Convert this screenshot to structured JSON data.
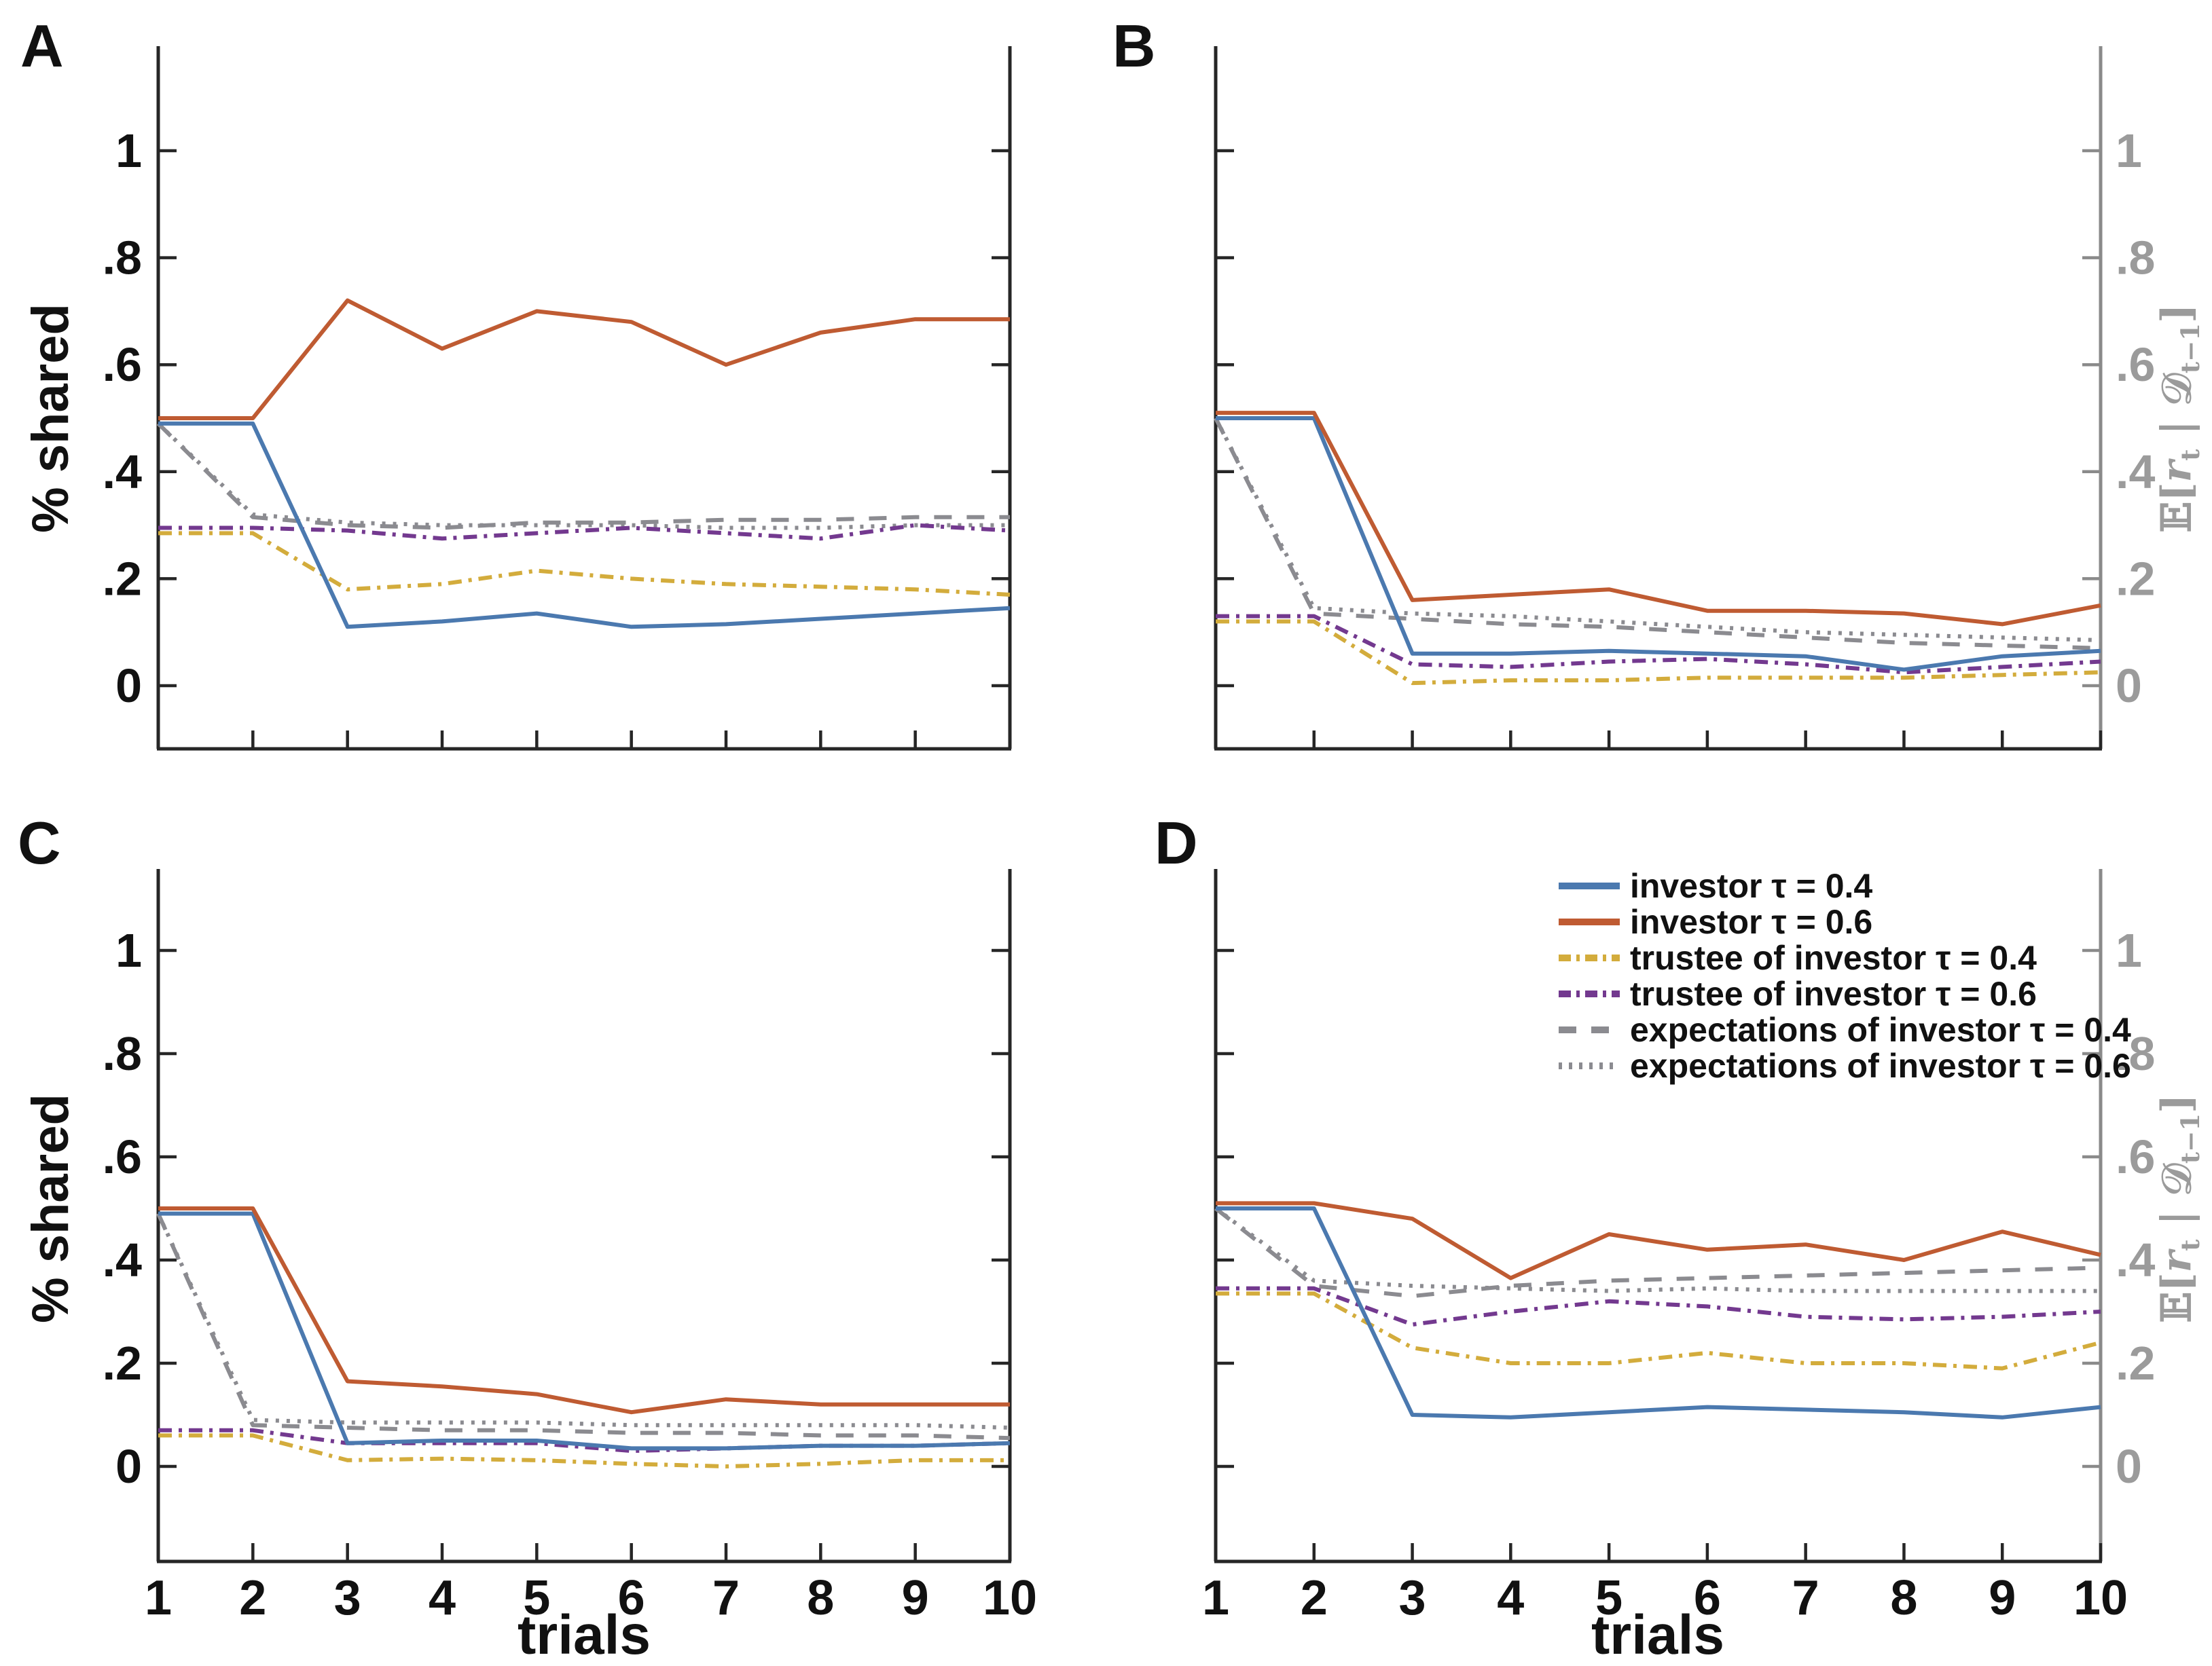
{
  "figure": {
    "panels": [
      {
        "id": "A",
        "letter": "A",
        "chart_index": 0,
        "row": 0,
        "col": 0,
        "left_tick_labels": true,
        "right_tick_labels": false,
        "x_tick_labels": false,
        "show_legend": false
      },
      {
        "id": "B",
        "letter": "B",
        "chart_index": 1,
        "row": 0,
        "col": 1,
        "left_tick_labels": false,
        "right_tick_labels": true,
        "x_tick_labels": false,
        "show_legend": false
      },
      {
        "id": "C",
        "letter": "C",
        "chart_index": 2,
        "row": 1,
        "col": 0,
        "left_tick_labels": true,
        "right_tick_labels": false,
        "x_tick_labels": true,
        "show_legend": false
      },
      {
        "id": "D",
        "letter": "D",
        "chart_index": 3,
        "row": 1,
        "col": 1,
        "left_tick_labels": false,
        "right_tick_labels": true,
        "x_tick_labels": true,
        "show_legend": true
      }
    ],
    "left_axis_label": "% shared",
    "x_axis_label": "trials",
    "right_axis_label_plain": "𝔼[rt | 𝒟t−1]",
    "right_axis_label_parts": {
      "p1": "𝔼[",
      "p2": "r",
      "s1": "t",
      "p3": " | ",
      "p4": "𝒟",
      "s2": "t−1",
      "p5": "]"
    }
  },
  "colors": {
    "investor_tau04": "#4B79AF",
    "investor_tau06": "#BF5B32",
    "trustee_tau04": "#D3AC3C",
    "trustee_tau06": "#73398F",
    "expectations_gray": "#8B8B90",
    "axis": "#262626",
    "right_spine": "#8A8A8A",
    "right_axis_text": "#9B9B9B"
  },
  "legend": {
    "position": "top of panel D",
    "items": [
      {
        "key": "investor_tau04",
        "label": "investor τ = 0.4",
        "color": "#4B79AF",
        "style": "solid"
      },
      {
        "key": "investor_tau06",
        "label": "investor τ = 0.6",
        "color": "#BF5B32",
        "style": "solid"
      },
      {
        "key": "trustee_tau04",
        "label": "trustee of investor τ = 0.4",
        "color": "#D3AC3C",
        "style": "dashdot"
      },
      {
        "key": "trustee_tau06",
        "label": "trustee of investor τ = 0.6",
        "color": "#73398F",
        "style": "dashdot"
      },
      {
        "key": "expectations_tau04",
        "label": "expectations of investor τ = 0.4",
        "color": "#8B8B90",
        "style": "dash"
      },
      {
        "key": "expectations_tau06",
        "label": "expectations of investor τ = 0.6",
        "color": "#8B8B90",
        "style": "dot"
      }
    ]
  },
  "chart_data": [
    {
      "panel": "A",
      "type": "line",
      "title": "",
      "xlabel": "",
      "ylabel_left": "% shared",
      "ylabel_right": "",
      "xlim": [
        1,
        10
      ],
      "ylim": [
        -0.12,
        1.2
      ],
      "grid": false,
      "legend_position": "none",
      "x_ticks": {
        "values": [
          1,
          2,
          3,
          4,
          5,
          6,
          7,
          8,
          9,
          10
        ],
        "labels": null
      },
      "y_ticks": {
        "values": [
          0,
          0.2,
          0.4,
          0.6,
          0.8,
          1
        ],
        "labels": [
          "0",
          ".2",
          ".4",
          ".6",
          ".8",
          "1"
        ]
      },
      "x": [
        1,
        2,
        3,
        4,
        5,
        6,
        7,
        8,
        9,
        10
      ],
      "series": [
        {
          "key": "expectations_tau04",
          "label": "expectations of investor τ = 0.4",
          "color": "#8B8B90",
          "style": "dash",
          "values": [
            0.49,
            0.315,
            0.3,
            0.295,
            0.305,
            0.305,
            0.31,
            0.31,
            0.315,
            0.315
          ]
        },
        {
          "key": "expectations_tau06",
          "label": "expectations of investor τ = 0.6",
          "color": "#8B8B90",
          "style": "dot",
          "values": [
            0.49,
            0.32,
            0.305,
            0.3,
            0.3,
            0.3,
            0.295,
            0.295,
            0.3,
            0.3
          ]
        },
        {
          "key": "trustee_tau04",
          "label": "trustee of investor τ = 0.4",
          "color": "#D3AC3C",
          "style": "dashdot",
          "values": [
            0.285,
            0.285,
            0.18,
            0.19,
            0.215,
            0.2,
            0.19,
            0.185,
            0.18,
            0.17
          ]
        },
        {
          "key": "trustee_tau06",
          "label": "trustee of investor τ = 0.6",
          "color": "#73398F",
          "style": "dashdot",
          "values": [
            0.295,
            0.295,
            0.29,
            0.275,
            0.285,
            0.295,
            0.285,
            0.275,
            0.3,
            0.29
          ]
        },
        {
          "key": "investor_tau04",
          "label": "investor τ = 0.4",
          "color": "#4B79AF",
          "style": "solid",
          "values": [
            0.49,
            0.49,
            0.11,
            0.12,
            0.135,
            0.11,
            0.115,
            0.125,
            0.135,
            0.145
          ]
        },
        {
          "key": "investor_tau06",
          "label": "investor τ = 0.6",
          "color": "#BF5B32",
          "style": "solid",
          "values": [
            0.5,
            0.5,
            0.72,
            0.63,
            0.7,
            0.68,
            0.6,
            0.66,
            0.685,
            0.685
          ]
        }
      ]
    },
    {
      "panel": "B",
      "type": "line",
      "title": "",
      "xlabel": "",
      "ylabel_left": "",
      "ylabel_right": "𝔼[rt | 𝒟t−1]",
      "xlim": [
        1,
        10
      ],
      "ylim": [
        -0.12,
        1.2
      ],
      "grid": false,
      "legend_position": "none",
      "x_ticks": {
        "values": [
          1,
          2,
          3,
          4,
          5,
          6,
          7,
          8,
          9,
          10
        ],
        "labels": null
      },
      "y_ticks": {
        "values": [
          0,
          0.2,
          0.4,
          0.6,
          0.8,
          1
        ],
        "labels": [
          "0",
          ".2",
          ".4",
          ".6",
          ".8",
          "1"
        ]
      },
      "x": [
        1,
        2,
        3,
        4,
        5,
        6,
        7,
        8,
        9,
        10
      ],
      "series": [
        {
          "key": "expectations_tau04",
          "label": "expectations of investor τ = 0.4",
          "color": "#8B8B90",
          "style": "dash",
          "values": [
            0.5,
            0.135,
            0.125,
            0.115,
            0.11,
            0.1,
            0.09,
            0.08,
            0.075,
            0.07
          ]
        },
        {
          "key": "expectations_tau06",
          "label": "expectations of investor τ = 0.6",
          "color": "#8B8B90",
          "style": "dot",
          "values": [
            0.5,
            0.145,
            0.135,
            0.13,
            0.12,
            0.11,
            0.1,
            0.095,
            0.09,
            0.085
          ]
        },
        {
          "key": "trustee_tau04",
          "label": "trustee of investor τ = 0.4",
          "color": "#D3AC3C",
          "style": "dashdot",
          "values": [
            0.12,
            0.12,
            0.005,
            0.01,
            0.01,
            0.015,
            0.015,
            0.015,
            0.02,
            0.025
          ]
        },
        {
          "key": "trustee_tau06",
          "label": "trustee of investor τ = 0.6",
          "color": "#73398F",
          "style": "dashdot",
          "values": [
            0.13,
            0.13,
            0.04,
            0.035,
            0.045,
            0.05,
            0.04,
            0.025,
            0.035,
            0.045
          ]
        },
        {
          "key": "investor_tau04",
          "label": "investor τ = 0.4",
          "color": "#4B79AF",
          "style": "solid",
          "values": [
            0.5,
            0.5,
            0.06,
            0.06,
            0.065,
            0.06,
            0.055,
            0.03,
            0.055,
            0.065
          ]
        },
        {
          "key": "investor_tau06",
          "label": "investor τ = 0.6",
          "color": "#BF5B32",
          "style": "solid",
          "values": [
            0.51,
            0.51,
            0.16,
            0.17,
            0.18,
            0.14,
            0.14,
            0.135,
            0.115,
            0.15
          ]
        }
      ]
    },
    {
      "panel": "C",
      "type": "line",
      "title": "",
      "xlabel": "trials",
      "ylabel_left": "% shared",
      "ylabel_right": "",
      "xlim": [
        1,
        10
      ],
      "ylim": [
        -0.18,
        1.16
      ],
      "grid": false,
      "legend_position": "none",
      "x_ticks": {
        "values": [
          1,
          2,
          3,
          4,
          5,
          6,
          7,
          8,
          9,
          10
        ],
        "labels": [
          "1",
          "2",
          "3",
          "4",
          "5",
          "6",
          "7",
          "8",
          "9",
          "10"
        ]
      },
      "y_ticks": {
        "values": [
          0,
          0.2,
          0.4,
          0.6,
          0.8,
          1
        ],
        "labels": [
          "0",
          ".2",
          ".4",
          ".6",
          ".8",
          "1"
        ]
      },
      "x": [
        1,
        2,
        3,
        4,
        5,
        6,
        7,
        8,
        9,
        10
      ],
      "series": [
        {
          "key": "expectations_tau04",
          "label": "expectations of investor τ = 0.4",
          "color": "#8B8B90",
          "style": "dash",
          "values": [
            0.49,
            0.08,
            0.075,
            0.07,
            0.07,
            0.065,
            0.065,
            0.06,
            0.06,
            0.055
          ]
        },
        {
          "key": "expectations_tau06",
          "label": "expectations of investor τ = 0.6",
          "color": "#8B8B90",
          "style": "dot",
          "values": [
            0.49,
            0.09,
            0.085,
            0.085,
            0.085,
            0.08,
            0.08,
            0.08,
            0.08,
            0.075
          ]
        },
        {
          "key": "trustee_tau04",
          "label": "trustee of investor τ = 0.4",
          "color": "#D3AC3C",
          "style": "dashdot",
          "values": [
            0.06,
            0.06,
            0.012,
            0.015,
            0.012,
            0.005,
            0.0,
            0.005,
            0.012,
            0.012
          ]
        },
        {
          "key": "trustee_tau06",
          "label": "trustee of investor τ = 0.6",
          "color": "#73398F",
          "style": "dashdot",
          "values": [
            0.07,
            0.07,
            0.045,
            0.045,
            0.045,
            0.03,
            0.035,
            0.04,
            0.04,
            0.045
          ]
        },
        {
          "key": "investor_tau04",
          "label": "investor τ = 0.4",
          "color": "#4B79AF",
          "style": "solid",
          "values": [
            0.49,
            0.49,
            0.045,
            0.05,
            0.05,
            0.035,
            0.035,
            0.04,
            0.04,
            0.045
          ]
        },
        {
          "key": "investor_tau06",
          "label": "investor τ = 0.6",
          "color": "#BF5B32",
          "style": "solid",
          "values": [
            0.5,
            0.5,
            0.165,
            0.155,
            0.14,
            0.105,
            0.13,
            0.12,
            0.12,
            0.12
          ]
        }
      ]
    },
    {
      "panel": "D",
      "type": "line",
      "title": "",
      "xlabel": "trials",
      "ylabel_left": "",
      "ylabel_right": "𝔼[rt | 𝒟t−1]",
      "xlim": [
        1,
        10
      ],
      "ylim": [
        -0.18,
        1.16
      ],
      "grid": false,
      "legend_position": "top",
      "x_ticks": {
        "values": [
          1,
          2,
          3,
          4,
          5,
          6,
          7,
          8,
          9,
          10
        ],
        "labels": [
          "1",
          "2",
          "3",
          "4",
          "5",
          "6",
          "7",
          "8",
          "9",
          "10"
        ]
      },
      "y_ticks": {
        "values": [
          0,
          0.2,
          0.4,
          0.6,
          0.8,
          1
        ],
        "labels": [
          "0",
          ".2",
          ".4",
          ".6",
          ".8",
          "1"
        ]
      },
      "x": [
        1,
        2,
        3,
        4,
        5,
        6,
        7,
        8,
        9,
        10
      ],
      "series": [
        {
          "key": "expectations_tau04",
          "label": "expectations of investor τ = 0.4",
          "color": "#8B8B90",
          "style": "dash",
          "values": [
            0.5,
            0.35,
            0.33,
            0.35,
            0.36,
            0.365,
            0.37,
            0.375,
            0.38,
            0.385
          ]
        },
        {
          "key": "expectations_tau06",
          "label": "expectations of investor τ = 0.6",
          "color": "#8B8B90",
          "style": "dot",
          "values": [
            0.5,
            0.36,
            0.35,
            0.345,
            0.34,
            0.345,
            0.34,
            0.34,
            0.34,
            0.34
          ]
        },
        {
          "key": "trustee_tau04",
          "label": "trustee of investor τ = 0.4",
          "color": "#D3AC3C",
          "style": "dashdot",
          "values": [
            0.335,
            0.335,
            0.23,
            0.2,
            0.2,
            0.22,
            0.2,
            0.2,
            0.19,
            0.24
          ]
        },
        {
          "key": "trustee_tau06",
          "label": "trustee of investor τ = 0.6",
          "color": "#73398F",
          "style": "dashdot",
          "values": [
            0.345,
            0.345,
            0.275,
            0.3,
            0.32,
            0.31,
            0.29,
            0.285,
            0.29,
            0.3
          ]
        },
        {
          "key": "investor_tau04",
          "label": "investor τ = 0.4",
          "color": "#4B79AF",
          "style": "solid",
          "values": [
            0.5,
            0.5,
            0.1,
            0.095,
            0.105,
            0.115,
            0.11,
            0.105,
            0.095,
            0.115
          ]
        },
        {
          "key": "investor_tau06",
          "label": "investor τ = 0.6",
          "color": "#BF5B32",
          "style": "solid",
          "values": [
            0.51,
            0.51,
            0.48,
            0.365,
            0.45,
            0.42,
            0.43,
            0.4,
            0.455,
            0.41
          ]
        }
      ]
    }
  ]
}
